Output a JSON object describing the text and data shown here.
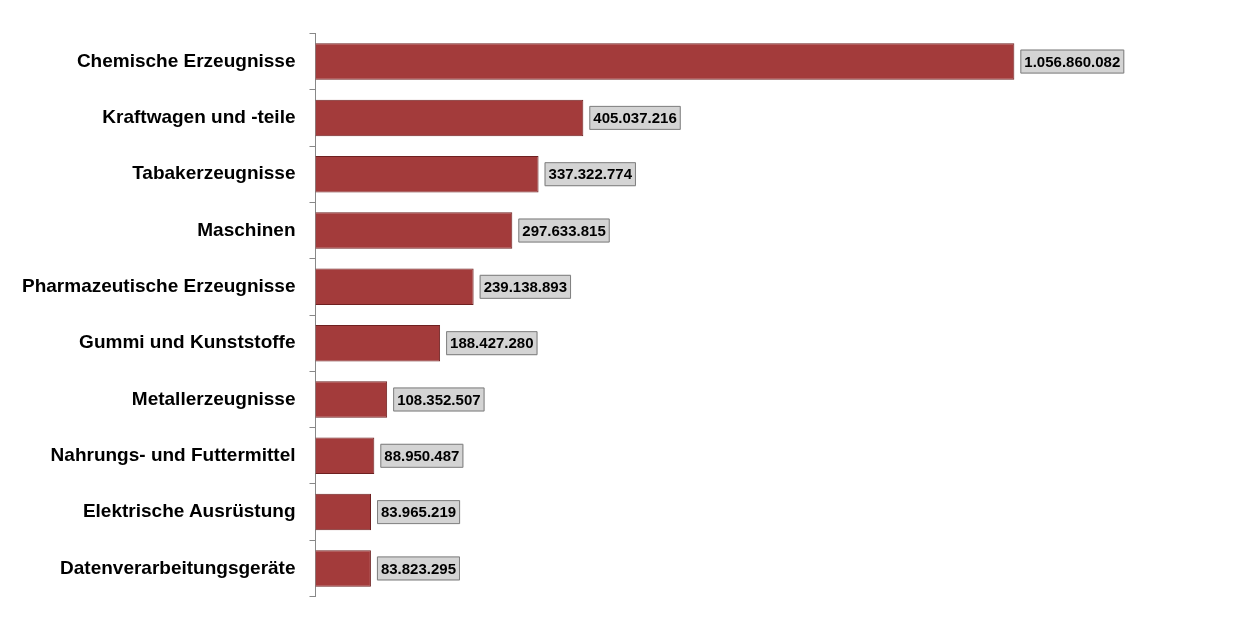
{
  "chart_data": {
    "type": "bar",
    "orientation": "horizontal",
    "grid": false,
    "legend": false,
    "tick_labels": "y",
    "categories": [
      "Chemische Erzeugnisse",
      "Kraftwagen und -teile",
      "Tabakerzeugnisse",
      "Maschinen",
      "Pharmazeutische Erzeugnisse",
      "Gummi und Kunststoffe",
      "Metallerzeugnisse",
      "Nahrungs- und Futtermittel",
      "Elektrische Ausrüstung",
      "Datenverarbeitungsgeräte"
    ],
    "values": [
      1056860082,
      405037216,
      337322774,
      297633815,
      239138893,
      188427280,
      108352507,
      88950487,
      83965219,
      83823295
    ],
    "value_labels": [
      "1.056.860.082",
      "405.037.216",
      "337.322.774",
      "297.633.815",
      "239.138.893",
      "188.427.280",
      "108.352.507",
      "88.950.487",
      "83.965.219",
      "83.823.295"
    ],
    "color": "#a33b3b"
  }
}
